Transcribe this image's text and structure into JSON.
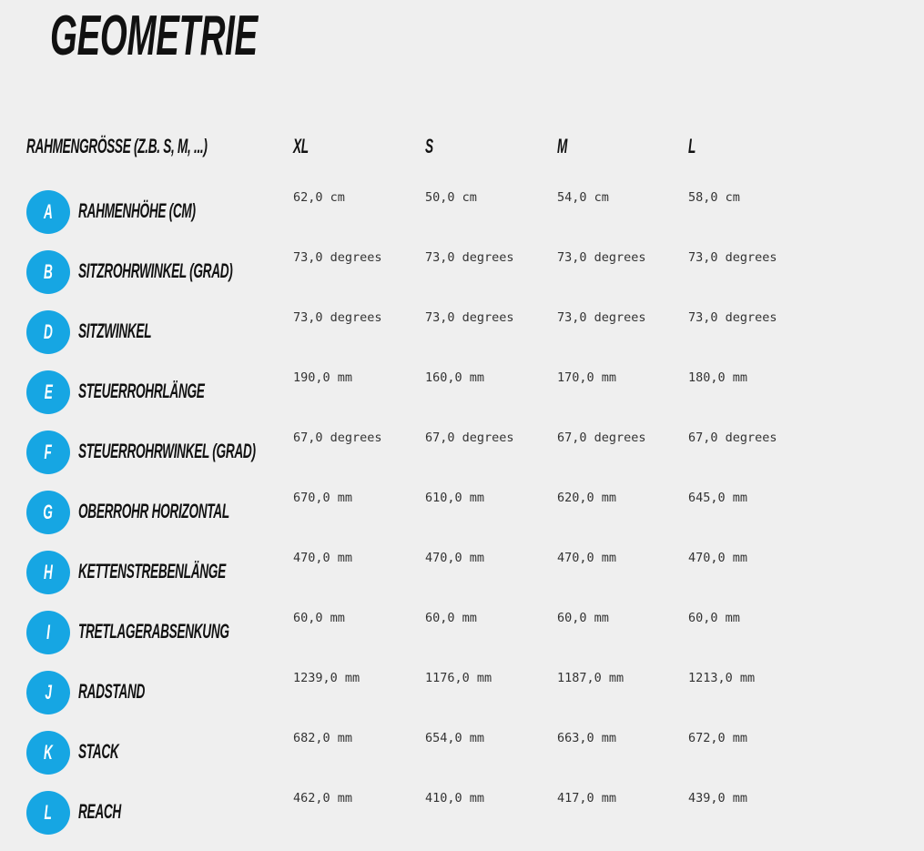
{
  "title": "GEOMETRIE",
  "header": {
    "label": "RAHMENGRÖSSE (Z.B. S, M, ...)",
    "sizes": [
      "XL",
      "S",
      "M",
      "L"
    ]
  },
  "accent_color": "#16a6e3",
  "rows": [
    {
      "letter": "A",
      "label": "RAHMENHÖHE (CM)",
      "values": [
        "62,0 cm",
        "50,0 cm",
        "54,0 cm",
        "58,0 cm"
      ]
    },
    {
      "letter": "B",
      "label": "SITZROHRWINKEL (GRAD)",
      "values": [
        "73,0 degrees",
        "73,0 degrees",
        "73,0 degrees",
        "73,0 degrees"
      ]
    },
    {
      "letter": "D",
      "label": "SITZWINKEL",
      "values": [
        "73,0 degrees",
        "73,0 degrees",
        "73,0 degrees",
        "73,0 degrees"
      ]
    },
    {
      "letter": "E",
      "label": "STEUERROHRLÄNGE",
      "values": [
        "190,0 mm",
        "160,0 mm",
        "170,0 mm",
        "180,0 mm"
      ]
    },
    {
      "letter": "F",
      "label": "STEUERROHRWINKEL (GRAD)",
      "values": [
        "67,0 degrees",
        "67,0 degrees",
        "67,0 degrees",
        "67,0 degrees"
      ]
    },
    {
      "letter": "G",
      "label": "OBERROHR HORIZONTAL",
      "values": [
        "670,0 mm",
        "610,0 mm",
        "620,0 mm",
        "645,0 mm"
      ]
    },
    {
      "letter": "H",
      "label": "KETTENSTREBENLÄNGE",
      "values": [
        "470,0 mm",
        "470,0 mm",
        "470,0 mm",
        "470,0 mm"
      ]
    },
    {
      "letter": "I",
      "label": "TRETLAGERABSENKUNG",
      "values": [
        "60,0 mm",
        "60,0 mm",
        "60,0 mm",
        "60,0 mm"
      ]
    },
    {
      "letter": "J",
      "label": "RADSTAND",
      "values": [
        "1239,0 mm",
        "1176,0 mm",
        "1187,0 mm",
        "1213,0 mm"
      ]
    },
    {
      "letter": "K",
      "label": "STACK",
      "values": [
        "682,0 mm",
        "654,0 mm",
        "663,0 mm",
        "672,0 mm"
      ]
    },
    {
      "letter": "L",
      "label": "REACH",
      "values": [
        "462,0 mm",
        "410,0 mm",
        "417,0 mm",
        "439,0 mm"
      ]
    }
  ]
}
